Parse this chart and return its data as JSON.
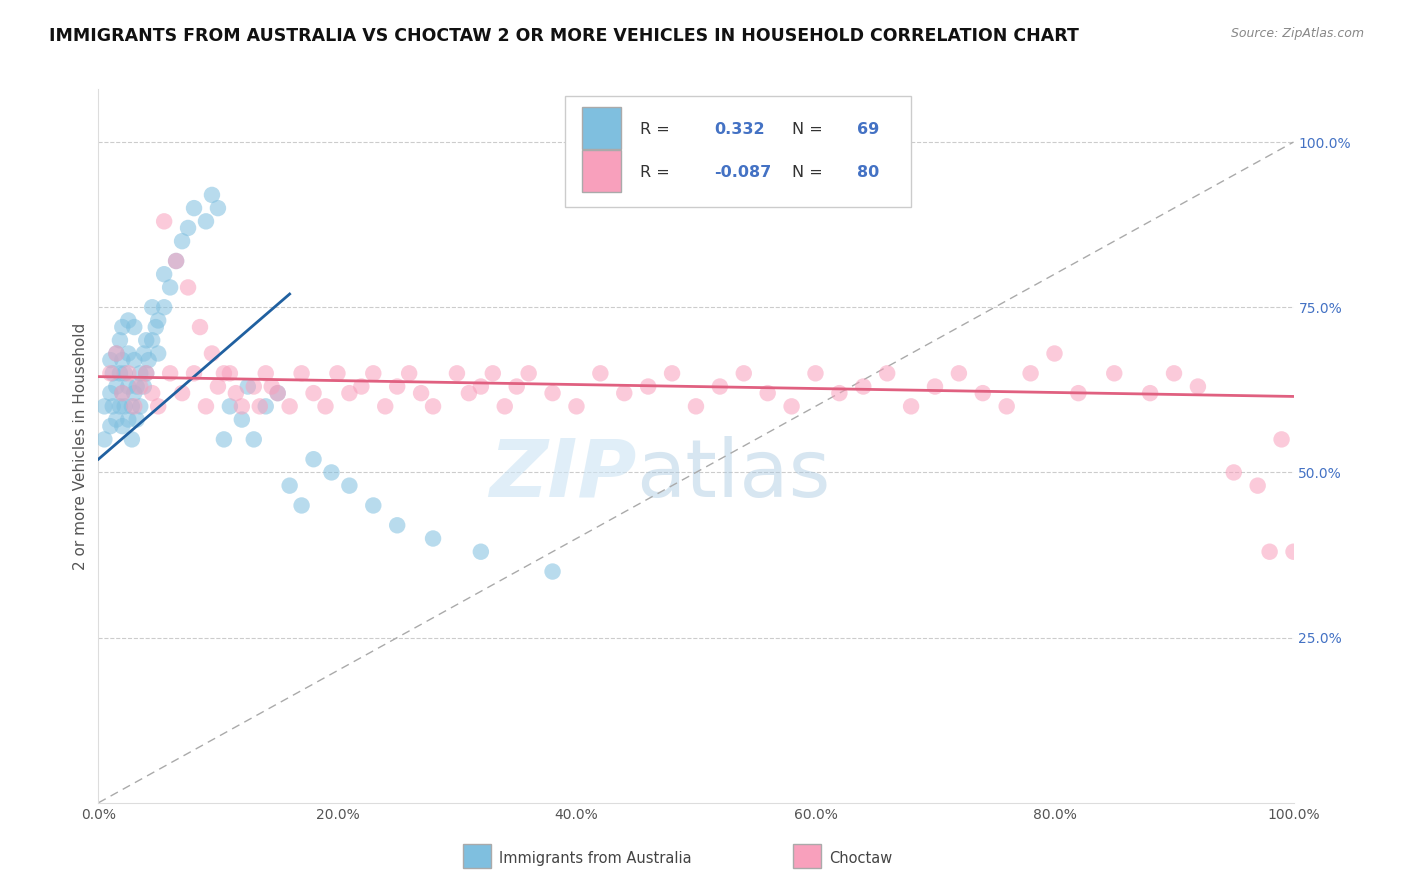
{
  "title": "IMMIGRANTS FROM AUSTRALIA VS CHOCTAW 2 OR MORE VEHICLES IN HOUSEHOLD CORRELATION CHART",
  "source_text": "Source: ZipAtlas.com",
  "ylabel": "2 or more Vehicles in Household",
  "xlim": [
    0.0,
    1.0
  ],
  "ylim": [
    0.0,
    1.08
  ],
  "xtick_labels": [
    "0.0%",
    "20.0%",
    "40.0%",
    "60.0%",
    "80.0%",
    "100.0%"
  ],
  "xtick_vals": [
    0.0,
    0.2,
    0.4,
    0.6,
    0.8,
    1.0
  ],
  "ytick_labels": [
    "25.0%",
    "50.0%",
    "75.0%",
    "100.0%"
  ],
  "ytick_vals": [
    0.25,
    0.5,
    0.75,
    1.0
  ],
  "blue_color": "#7fbfdf",
  "pink_color": "#f8a0bc",
  "blue_line_color": "#2060a0",
  "pink_line_color": "#e06080",
  "legend_blue_R": "0.332",
  "legend_blue_N": "69",
  "legend_pink_R": "-0.087",
  "legend_pink_N": "80",
  "legend_label_blue": "Immigrants from Australia",
  "legend_label_pink": "Choctaw",
  "blue_x": [
    0.005,
    0.005,
    0.01,
    0.01,
    0.01,
    0.012,
    0.012,
    0.015,
    0.015,
    0.015,
    0.018,
    0.018,
    0.018,
    0.02,
    0.02,
    0.02,
    0.02,
    0.022,
    0.022,
    0.025,
    0.025,
    0.025,
    0.025,
    0.028,
    0.028,
    0.03,
    0.03,
    0.03,
    0.032,
    0.032,
    0.035,
    0.035,
    0.038,
    0.038,
    0.04,
    0.04,
    0.042,
    0.045,
    0.045,
    0.048,
    0.05,
    0.05,
    0.055,
    0.055,
    0.06,
    0.065,
    0.07,
    0.075,
    0.08,
    0.09,
    0.095,
    0.1,
    0.105,
    0.11,
    0.12,
    0.125,
    0.13,
    0.14,
    0.15,
    0.16,
    0.17,
    0.18,
    0.195,
    0.21,
    0.23,
    0.25,
    0.28,
    0.32,
    0.38
  ],
  "blue_y": [
    0.55,
    0.6,
    0.57,
    0.62,
    0.67,
    0.6,
    0.65,
    0.58,
    0.63,
    0.68,
    0.6,
    0.65,
    0.7,
    0.57,
    0.62,
    0.67,
    0.72,
    0.6,
    0.65,
    0.58,
    0.63,
    0.68,
    0.73,
    0.55,
    0.6,
    0.62,
    0.67,
    0.72,
    0.58,
    0.63,
    0.6,
    0.65,
    0.63,
    0.68,
    0.65,
    0.7,
    0.67,
    0.7,
    0.75,
    0.72,
    0.68,
    0.73,
    0.75,
    0.8,
    0.78,
    0.82,
    0.85,
    0.87,
    0.9,
    0.88,
    0.92,
    0.9,
    0.55,
    0.6,
    0.58,
    0.63,
    0.55,
    0.6,
    0.62,
    0.48,
    0.45,
    0.52,
    0.5,
    0.48,
    0.45,
    0.42,
    0.4,
    0.38,
    0.35
  ],
  "pink_x": [
    0.01,
    0.015,
    0.02,
    0.025,
    0.03,
    0.035,
    0.04,
    0.045,
    0.05,
    0.06,
    0.07,
    0.08,
    0.09,
    0.1,
    0.11,
    0.12,
    0.13,
    0.14,
    0.15,
    0.16,
    0.17,
    0.18,
    0.19,
    0.2,
    0.21,
    0.22,
    0.23,
    0.24,
    0.25,
    0.26,
    0.27,
    0.28,
    0.3,
    0.31,
    0.32,
    0.33,
    0.34,
    0.35,
    0.36,
    0.38,
    0.4,
    0.42,
    0.44,
    0.46,
    0.48,
    0.5,
    0.52,
    0.54,
    0.56,
    0.58,
    0.6,
    0.62,
    0.64,
    0.66,
    0.68,
    0.7,
    0.72,
    0.74,
    0.76,
    0.78,
    0.8,
    0.82,
    0.85,
    0.88,
    0.9,
    0.92,
    0.95,
    0.97,
    0.98,
    0.99,
    1.0,
    0.055,
    0.065,
    0.075,
    0.085,
    0.095,
    0.105,
    0.115,
    0.135,
    0.145
  ],
  "pink_y": [
    0.65,
    0.68,
    0.62,
    0.65,
    0.6,
    0.63,
    0.65,
    0.62,
    0.6,
    0.65,
    0.62,
    0.65,
    0.6,
    0.63,
    0.65,
    0.6,
    0.63,
    0.65,
    0.62,
    0.6,
    0.65,
    0.62,
    0.6,
    0.65,
    0.62,
    0.63,
    0.65,
    0.6,
    0.63,
    0.65,
    0.62,
    0.6,
    0.65,
    0.62,
    0.63,
    0.65,
    0.6,
    0.63,
    0.65,
    0.62,
    0.6,
    0.65,
    0.62,
    0.63,
    0.65,
    0.6,
    0.63,
    0.65,
    0.62,
    0.6,
    0.65,
    0.62,
    0.63,
    0.65,
    0.6,
    0.63,
    0.65,
    0.62,
    0.6,
    0.65,
    0.68,
    0.62,
    0.65,
    0.62,
    0.65,
    0.63,
    0.5,
    0.48,
    0.38,
    0.55,
    0.38,
    0.88,
    0.82,
    0.78,
    0.72,
    0.68,
    0.65,
    0.62,
    0.6,
    0.63
  ]
}
